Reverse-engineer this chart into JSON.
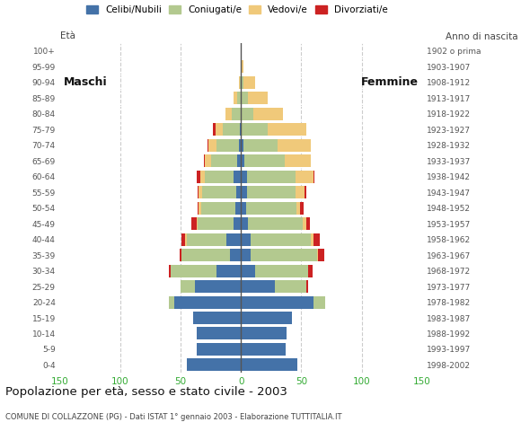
{
  "age_groups": [
    "0-4",
    "5-9",
    "10-14",
    "15-19",
    "20-24",
    "25-29",
    "30-34",
    "35-39",
    "40-44",
    "45-49",
    "50-54",
    "55-59",
    "60-64",
    "65-69",
    "70-74",
    "75-79",
    "80-84",
    "85-89",
    "90-94",
    "95-99",
    "100+"
  ],
  "birth_years": [
    "1998-2002",
    "1993-1997",
    "1988-1992",
    "1983-1987",
    "1978-1982",
    "1973-1977",
    "1968-1972",
    "1963-1967",
    "1958-1962",
    "1953-1957",
    "1948-1952",
    "1943-1947",
    "1938-1942",
    "1933-1937",
    "1928-1932",
    "1923-1927",
    "1918-1922",
    "1913-1917",
    "1908-1912",
    "1903-1907",
    "1902 o prima"
  ],
  "colors": {
    "celibi": "#4472a8",
    "coniugati": "#b3c98f",
    "vedovi": "#f0c97a",
    "divorziati": "#cc2222"
  },
  "males": {
    "celibi": [
      45,
      37,
      37,
      40,
      55,
      38,
      20,
      9,
      12,
      6,
      5,
      4,
      6,
      3,
      2,
      1,
      0,
      0,
      0,
      0,
      0
    ],
    "coniugati": [
      0,
      0,
      0,
      0,
      5,
      12,
      38,
      40,
      33,
      30,
      28,
      28,
      24,
      22,
      18,
      14,
      8,
      3,
      1,
      0,
      0
    ],
    "vedovi": [
      0,
      0,
      0,
      0,
      0,
      0,
      0,
      0,
      1,
      1,
      2,
      3,
      4,
      5,
      7,
      6,
      5,
      3,
      1,
      0,
      0
    ],
    "divorziati": [
      0,
      0,
      0,
      0,
      0,
      0,
      2,
      2,
      3,
      4,
      1,
      1,
      3,
      1,
      1,
      2,
      0,
      0,
      0,
      0,
      0
    ]
  },
  "females": {
    "celibi": [
      47,
      37,
      38,
      42,
      60,
      28,
      12,
      8,
      8,
      6,
      4,
      5,
      5,
      3,
      2,
      0,
      0,
      0,
      0,
      0,
      0
    ],
    "coniugati": [
      0,
      0,
      0,
      0,
      10,
      26,
      44,
      55,
      50,
      45,
      42,
      40,
      40,
      33,
      28,
      22,
      10,
      6,
      2,
      0,
      0
    ],
    "vedovi": [
      0,
      0,
      0,
      0,
      0,
      0,
      0,
      1,
      2,
      3,
      3,
      8,
      15,
      22,
      28,
      32,
      25,
      16,
      10,
      2,
      0
    ],
    "divorziati": [
      0,
      0,
      0,
      0,
      0,
      2,
      3,
      5,
      5,
      3,
      3,
      1,
      1,
      0,
      0,
      0,
      0,
      0,
      0,
      0,
      0
    ]
  },
  "title": "Popolazione per età, sesso e stato civile - 2003",
  "subtitle": "COMUNE DI COLLAZZONE (PG) - Dati ISTAT 1° gennaio 2003 - Elaborazione TUTTITALIA.IT",
  "xlabel_left": "Maschi",
  "xlabel_right": "Femmine",
  "ylabel_left": "Età",
  "ylabel_right": "Anno di nascita",
  "xlim": 150,
  "legend_labels": [
    "Celibi/Nubili",
    "Coniugati/e",
    "Vedovi/e",
    "Divorziati/e"
  ],
  "background_color": "#ffffff"
}
